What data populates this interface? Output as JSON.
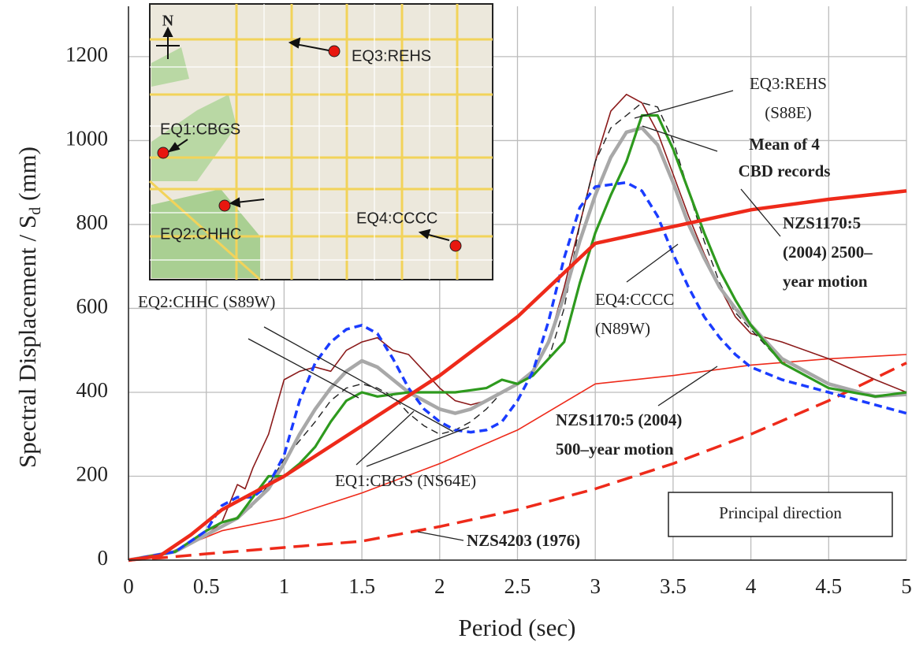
{
  "chart_data": {
    "type": "line",
    "xlabel": "Period (sec)",
    "ylabel": [
      "Spectral Displacement / S",
      "d",
      "(mm)"
    ],
    "xlim": [
      0,
      5
    ],
    "xticks": [
      0,
      0.5,
      1,
      1.5,
      2,
      2.5,
      3,
      3.5,
      4,
      4.5,
      5
    ],
    "ylim": [
      0,
      1320
    ],
    "yticks": [
      0,
      200,
      400,
      600,
      800,
      1000,
      1200
    ],
    "grid": true,
    "series": [
      {
        "color": "#ee2a1a",
        "style": "dashed",
        "x": [
          0,
          0.2,
          0.5,
          1,
          1.5,
          2,
          2.5,
          3,
          3.5,
          4,
          4.5,
          5
        ],
        "values": [
          0,
          5,
          15,
          30,
          45,
          80,
          120,
          170,
          230,
          300,
          380,
          470
        ]
      },
      {
        "color": "#ee2a1a",
        "style": "thin",
        "x": [
          0,
          0.2,
          0.4,
          0.6,
          1,
          1.5,
          2,
          2.5,
          3,
          3.5,
          4,
          4.5,
          5
        ],
        "values": [
          0,
          8,
          40,
          70,
          100,
          160,
          230,
          310,
          420,
          440,
          465,
          480,
          490
        ]
      },
      {
        "color": "#8b1a1a",
        "style": "thin",
        "x": [
          0,
          0.3,
          0.5,
          0.6,
          0.7,
          0.75,
          0.8,
          0.9,
          1,
          1.1,
          1.2,
          1.3,
          1.4,
          1.5,
          1.6,
          1.7,
          1.8,
          1.9,
          2,
          2.1,
          2.2,
          2.3,
          2.4,
          2.5,
          2.6,
          2.7,
          2.8,
          2.9,
          3,
          3.1,
          3.2,
          3.3,
          3.4,
          3.5,
          3.6,
          3.7,
          3.8,
          3.9,
          4,
          4.2,
          4.5,
          4.8,
          5
        ],
        "values": [
          0,
          20,
          60,
          90,
          180,
          170,
          220,
          300,
          430,
          450,
          460,
          450,
          500,
          520,
          530,
          500,
          490,
          450,
          410,
          380,
          370,
          380,
          400,
          420,
          450,
          520,
          650,
          800,
          950,
          1070,
          1110,
          1090,
          1020,
          920,
          820,
          730,
          650,
          580,
          540,
          520,
          480,
          430,
          400
        ]
      },
      {
        "color": "#222222",
        "style": "thin-dashed",
        "x": [
          0,
          0.3,
          0.5,
          0.7,
          0.8,
          0.9,
          1,
          1.2,
          1.3,
          1.4,
          1.5,
          1.6,
          1.7,
          1.8,
          1.9,
          2,
          2.1,
          2.2,
          2.3,
          2.4,
          2.5,
          2.6,
          2.7,
          2.8,
          2.9,
          3,
          3.1,
          3.2,
          3.3,
          3.4,
          3.5,
          3.6,
          3.7,
          3.8,
          3.9,
          4,
          4.2,
          4.5,
          4.8,
          5
        ],
        "values": [
          0,
          20,
          60,
          100,
          130,
          180,
          240,
          330,
          380,
          410,
          420,
          410,
          390,
          350,
          320,
          300,
          310,
          330,
          360,
          400,
          420,
          440,
          480,
          600,
          800,
          950,
          1030,
          1060,
          1090,
          1080,
          1000,
          880,
          760,
          660,
          590,
          550,
          470,
          410,
          390,
          400
        ]
      },
      {
        "color": "#a8a8a8",
        "style": "thick",
        "x": [
          0,
          0.3,
          0.5,
          0.7,
          0.9,
          1,
          1.1,
          1.2,
          1.3,
          1.4,
          1.5,
          1.6,
          1.7,
          1.8,
          1.9,
          2,
          2.1,
          2.2,
          2.3,
          2.4,
          2.5,
          2.6,
          2.7,
          2.8,
          2.9,
          3,
          3.1,
          3.2,
          3.3,
          3.4,
          3.5,
          3.6,
          3.7,
          3.8,
          3.9,
          4,
          4.2,
          4.5,
          4.8,
          5
        ],
        "values": [
          0,
          20,
          60,
          100,
          170,
          230,
          300,
          360,
          410,
          450,
          475,
          460,
          430,
          400,
          380,
          360,
          350,
          360,
          380,
          400,
          420,
          450,
          520,
          630,
          760,
          870,
          960,
          1020,
          1030,
          990,
          900,
          800,
          720,
          650,
          600,
          560,
          480,
          420,
          390,
          395
        ]
      },
      {
        "color": "#2e9a1e",
        "style": "medium",
        "x": [
          0,
          0.3,
          0.5,
          0.6,
          0.7,
          0.8,
          0.9,
          1,
          1.1,
          1.2,
          1.3,
          1.4,
          1.5,
          1.6,
          1.7,
          1.8,
          1.9,
          2,
          2.1,
          2.2,
          2.3,
          2.4,
          2.5,
          2.6,
          2.7,
          2.8,
          2.9,
          3,
          3.1,
          3.2,
          3.3,
          3.4,
          3.5,
          3.6,
          3.7,
          3.8,
          3.9,
          4,
          4.2,
          4.5,
          4.8,
          5
        ],
        "values": [
          0,
          20,
          70,
          90,
          100,
          150,
          200,
          200,
          230,
          270,
          330,
          380,
          400,
          390,
          395,
          400,
          400,
          400,
          400,
          405,
          410,
          430,
          420,
          440,
          480,
          520,
          660,
          780,
          870,
          950,
          1060,
          1060,
          980,
          880,
          780,
          690,
          620,
          560,
          470,
          410,
          390,
          400
        ]
      },
      {
        "color": "#1a3cff",
        "style": "dashed",
        "x": [
          0,
          0.3,
          0.5,
          0.6,
          0.7,
          0.8,
          0.9,
          1,
          1.1,
          1.2,
          1.3,
          1.4,
          1.5,
          1.6,
          1.7,
          1.8,
          1.9,
          2,
          2.1,
          2.2,
          2.3,
          2.4,
          2.5,
          2.6,
          2.7,
          2.8,
          2.9,
          3,
          3.1,
          3.2,
          3.3,
          3.4,
          3.5,
          3.6,
          3.7,
          3.8,
          3.9,
          4,
          4.2,
          4.5,
          4.8,
          5
        ],
        "values": [
          0,
          20,
          70,
          130,
          150,
          150,
          180,
          250,
          380,
          470,
          520,
          550,
          560,
          540,
          480,
          410,
          360,
          330,
          310,
          305,
          310,
          330,
          380,
          450,
          570,
          720,
          840,
          890,
          895,
          900,
          880,
          820,
          730,
          650,
          580,
          530,
          490,
          460,
          430,
          400,
          370,
          350
        ]
      },
      {
        "color": "#ee2a1a",
        "style": "thick",
        "x": [
          0,
          0.2,
          0.4,
          0.6,
          0.8,
          1,
          1.5,
          2,
          2.5,
          3,
          3.5,
          4,
          4.5,
          5
        ],
        "values": [
          0,
          10,
          60,
          120,
          160,
          200,
          320,
          440,
          580,
          755,
          795,
          835,
          860,
          880
        ]
      }
    ],
    "annotations": [
      {
        "text": [
          "EQ3:REHS",
          "(S88E)"
        ]
      },
      {
        "text": [
          "Mean of 4",
          "CBD records"
        ]
      },
      {
        "text": [
          "NZS1170:5",
          "(2004) 2500–",
          "year motion"
        ]
      },
      {
        "text": [
          "EQ4:CCCC",
          "(N89W)"
        ]
      },
      {
        "text": [
          "EQ2:CHHC (S89W)"
        ]
      },
      {
        "text": [
          "NZS1170:5 (2004)",
          "500–year motion"
        ]
      },
      {
        "text": [
          "EQ1:CBGS (NS64E)"
        ]
      },
      {
        "text": [
          "NZS4203 (1976)"
        ]
      },
      {
        "text": [
          "Principal direction"
        ]
      }
    ]
  },
  "inset": {
    "north": "N",
    "labels": [
      "EQ3:REHS",
      "EQ1:CBGS",
      "EQ2:CHHC",
      "EQ4:CCCC"
    ]
  }
}
